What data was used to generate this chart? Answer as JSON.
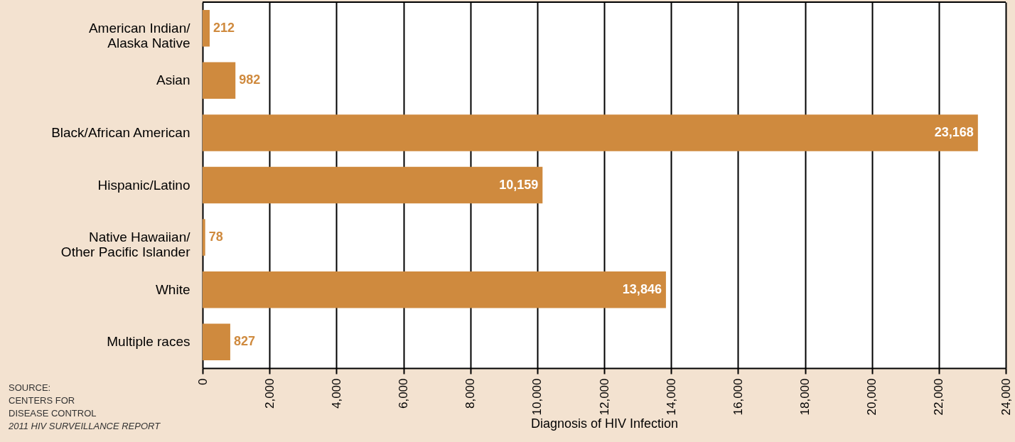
{
  "chart_data": {
    "type": "bar",
    "orientation": "horizontal",
    "xlabel": "Diagnosis of HIV Infection",
    "categories": [
      "American Indian/\nAlaska Native",
      "Asian",
      "Black/African American",
      "Hispanic/Latino",
      "Native Hawaiian/\nOther Pacific Islander",
      "White",
      "Multiple races"
    ],
    "values": [
      212,
      982,
      23168,
      10159,
      78,
      13846,
      827
    ],
    "color": "#cf8a3e",
    "value_labels": [
      "212",
      "982",
      "23,168",
      "10,159",
      "78",
      "13,846",
      "827"
    ],
    "xlim": [
      0,
      24000
    ],
    "xticks": [
      {
        "value": 0,
        "label": "0"
      },
      {
        "value": 2000,
        "label": "2,000"
      },
      {
        "value": 4000,
        "label": "4,000"
      },
      {
        "value": 6000,
        "label": "6,000"
      },
      {
        "value": 8000,
        "label": "8,000"
      },
      {
        "value": 10000,
        "label": "10,000"
      },
      {
        "value": 12000,
        "label": "12,000"
      },
      {
        "value": 14000,
        "label": "14,000"
      },
      {
        "value": 16000,
        "label": "16,000"
      },
      {
        "value": 18000,
        "label": "18,000"
      },
      {
        "value": 20000,
        "label": "20,000"
      },
      {
        "value": 22000,
        "label": "22,000"
      },
      {
        "value": 24000,
        "label": "24,000"
      }
    ],
    "grid": "x",
    "annotations": [
      "SOURCE:\nCENTERS FOR\nDISEASE CONTROL",
      "2011 HIV SURVEILLANCE REPORT"
    ]
  }
}
